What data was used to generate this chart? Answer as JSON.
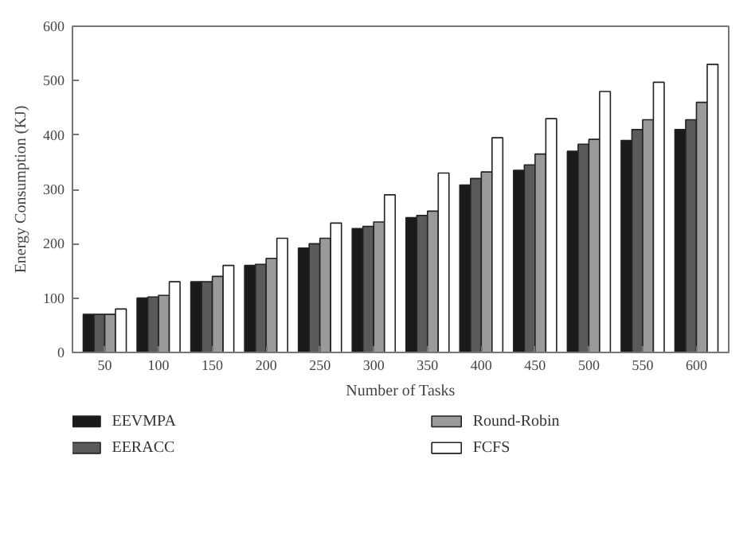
{
  "chart_data": {
    "type": "bar",
    "xlabel": "Number of Tasks",
    "ylabel": "Energy Consumption (KJ)",
    "categories": [
      "50",
      "100",
      "150",
      "200",
      "250",
      "300",
      "350",
      "400",
      "450",
      "500",
      "550",
      "600"
    ],
    "ylim": [
      0,
      600
    ],
    "yticks": [
      0,
      100,
      200,
      300,
      400,
      500,
      600
    ],
    "grid": false,
    "legend": "bottom",
    "series": [
      {
        "name": "EEVMPA",
        "color": "#1a1a1a",
        "values": [
          70,
          100,
          130,
          160,
          192,
          228,
          248,
          308,
          335,
          370,
          390,
          410
        ]
      },
      {
        "name": "EERACC",
        "color": "#5a5a5a",
        "values": [
          70,
          102,
          130,
          162,
          200,
          232,
          252,
          320,
          345,
          383,
          410,
          428
        ]
      },
      {
        "name": "Round-Robin",
        "color": "#9a9a9a",
        "values": [
          70,
          105,
          140,
          173,
          210,
          240,
          260,
          332,
          365,
          392,
          428,
          460
        ]
      },
      {
        "name": "FCFS",
        "color": "#ffffff",
        "values": [
          80,
          130,
          160,
          210,
          238,
          290,
          330,
          395,
          430,
          480,
          497,
          530
        ]
      }
    ]
  }
}
